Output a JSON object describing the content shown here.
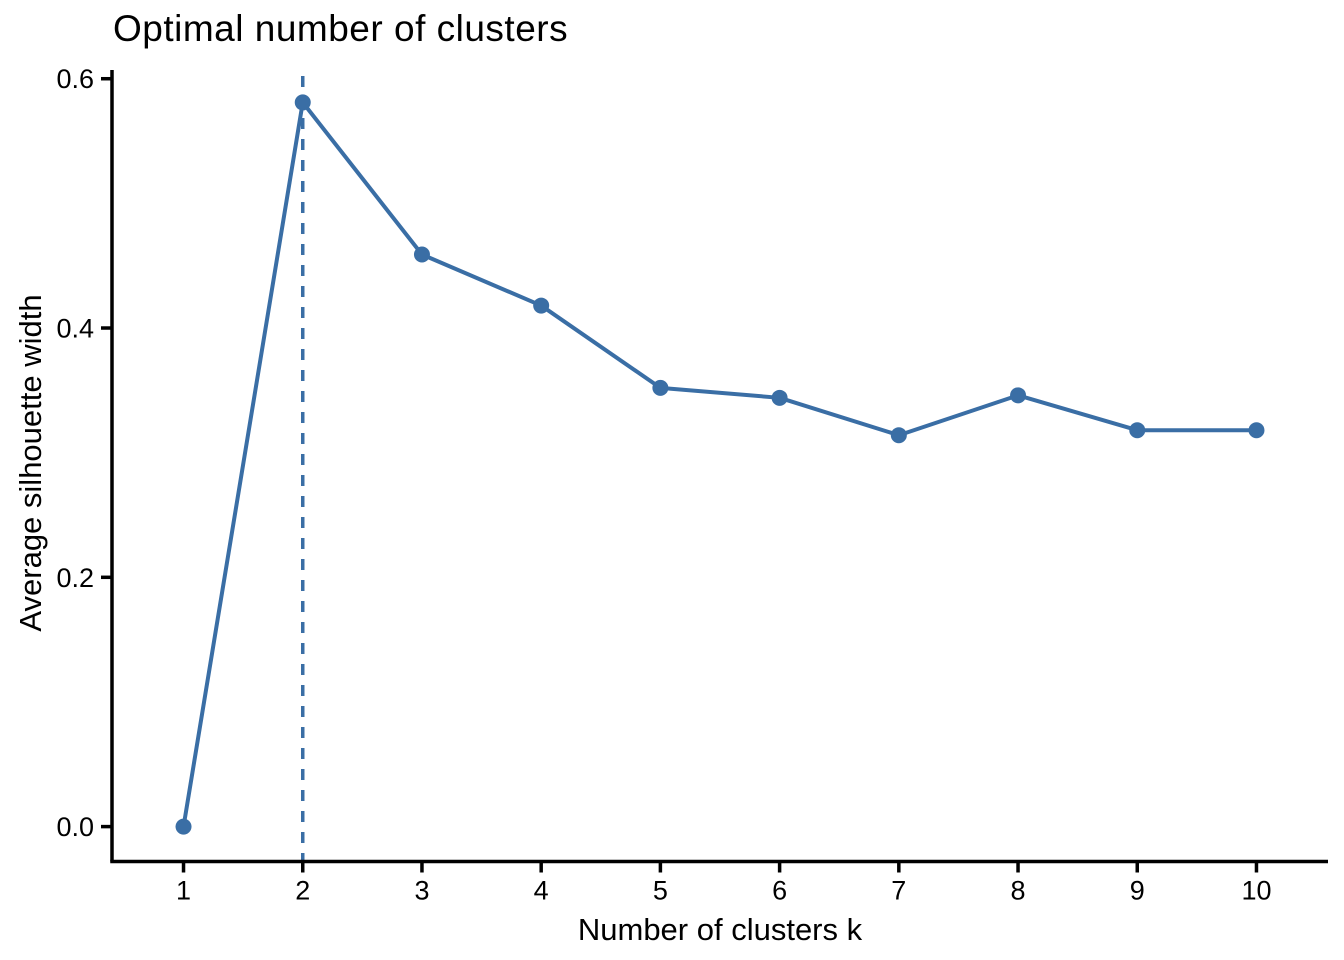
{
  "chart_data": {
    "type": "line",
    "title": "Optimal number of clusters",
    "xlabel": "Number of clusters k",
    "ylabel": "Average silhouette width",
    "x": [
      1,
      2,
      3,
      4,
      5,
      6,
      7,
      8,
      9,
      10
    ],
    "values": [
      0.0,
      0.581,
      0.459,
      0.418,
      0.352,
      0.344,
      0.314,
      0.346,
      0.318,
      0.318
    ],
    "x_tick_labels": [
      "1",
      "2",
      "3",
      "4",
      "5",
      "6",
      "7",
      "8",
      "9",
      "10"
    ],
    "y_tick_labels": [
      "0.0",
      "0.2",
      "0.4",
      "0.6"
    ],
    "y_tick_values": [
      0.0,
      0.2,
      0.4,
      0.6
    ],
    "xlim": [
      0.4,
      10.6
    ],
    "ylim": [
      -0.028,
      0.607
    ],
    "optimal_k_vline": 2,
    "grid": false,
    "legend": "none",
    "line_color": "#3A6EA5",
    "axis_color": "#000000",
    "background": "#FFFFFF"
  }
}
